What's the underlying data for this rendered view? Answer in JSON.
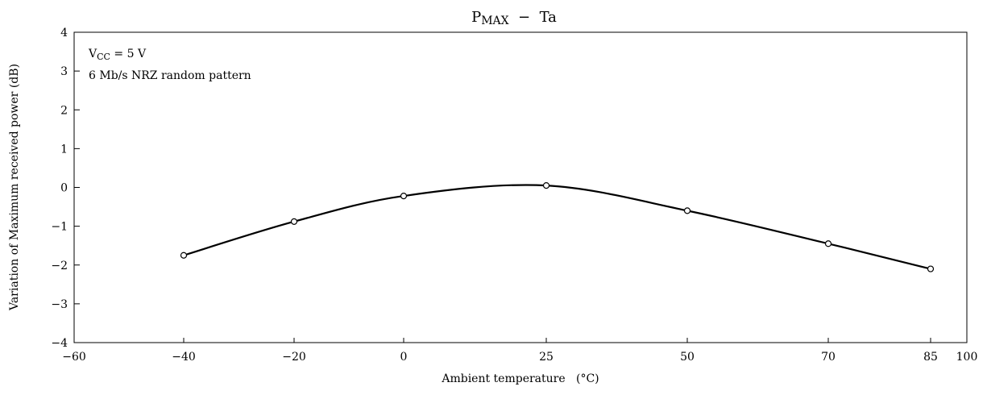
{
  "chart_data": {
    "type": "line",
    "title": "PMAX − Ta",
    "title_main": "P",
    "title_sub": "MAX",
    "title_rest": "  −  Ta",
    "xlabel": "Ambient temperature   (°C)",
    "ylabel": "Variation of Maximum received power   (dB)",
    "xlim": [
      -60,
      100
    ],
    "ylim": [
      -4,
      4
    ],
    "x_ticks": [
      -60,
      -20,
      0,
      25,
      50,
      70,
      85,
      100
    ],
    "x_tick_labels": [
      "−60",
      "−20",
      "0",
      "25",
      "50",
      "70",
      "85",
      "100"
    ],
    "x_minor_ticks": [
      -40
    ],
    "x_minor_tick_labels": [
      "−40"
    ],
    "y_ticks": [
      -4,
      -3,
      -2,
      -1,
      0,
      1,
      2,
      3,
      4
    ],
    "y_tick_labels": [
      "−4",
      "−3",
      "−2",
      "−1",
      "0",
      "1",
      "2",
      "3",
      "4"
    ],
    "grid": false,
    "series": [
      {
        "x": [
          -40,
          -20,
          0,
          25,
          50,
          70,
          85
        ],
        "values": [
          -1.75,
          -0.88,
          -0.22,
          0.05,
          -0.6,
          -1.45,
          -2.1
        ]
      }
    ],
    "annotations": {
      "vcc_main": "V",
      "vcc_sub": "CC",
      "vcc_rest": " = 5 V",
      "pattern": "6 Mb/s NRZ random pattern"
    }
  }
}
